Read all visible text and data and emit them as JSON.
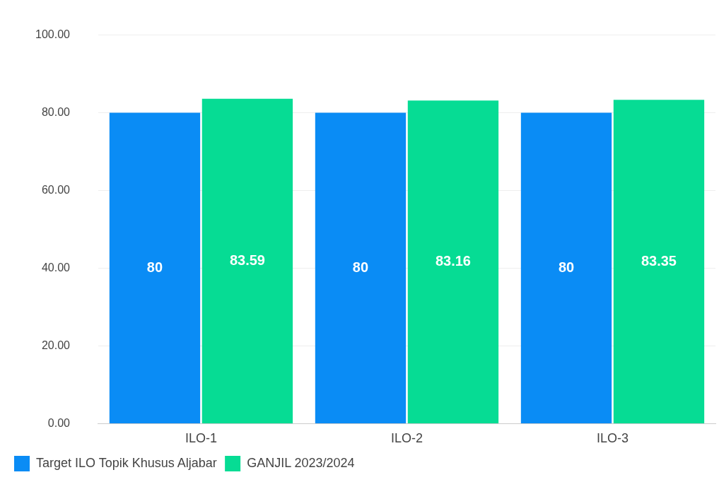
{
  "chart_data": {
    "type": "bar",
    "categories": [
      "ILO-1",
      "ILO-2",
      "ILO-3"
    ],
    "series": [
      {
        "name": "Target ILO Topik Khusus Aljabar",
        "color": "#0a8cf5",
        "values": [
          80,
          80,
          80
        ]
      },
      {
        "name": "GANJIL 2023/2024",
        "color": "#06dc94",
        "values": [
          83.59,
          83.16,
          83.35
        ]
      }
    ],
    "ylim": [
      0,
      100
    ],
    "yticks": [
      {
        "value": 0,
        "label": "0.00"
      },
      {
        "value": 20,
        "label": "20.00"
      },
      {
        "value": 40,
        "label": "40.00"
      },
      {
        "value": 60,
        "label": "60.00"
      },
      {
        "value": 80,
        "label": "80.00"
      },
      {
        "value": 100,
        "label": "100.00"
      }
    ],
    "grid": "y",
    "legend": "bottom left",
    "data_labels": true
  }
}
